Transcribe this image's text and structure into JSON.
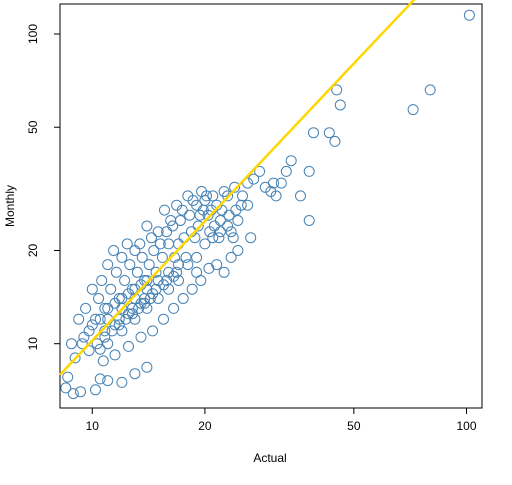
{
  "chart_data": {
    "type": "scatter",
    "title": "",
    "xlabel": "Actual",
    "ylabel": "Monthly",
    "xscale": "log",
    "yscale": "log",
    "xlim": [
      8.2,
      110
    ],
    "ylim": [
      6.2,
      125
    ],
    "xticks": [
      10,
      20,
      50,
      100
    ],
    "yticks": [
      10,
      20,
      50,
      100
    ],
    "grid": false,
    "legend": "none",
    "colors": {
      "points": "#4682b4",
      "fit_line": "#ffd700",
      "axis": "#000000"
    },
    "fit_line": {
      "slope": 1.28,
      "intercept_log10": -0.27
    },
    "points": [
      [
        101.8,
        115
      ],
      [
        80,
        66
      ],
      [
        72,
        57
      ],
      [
        46,
        59
      ],
      [
        45,
        66
      ],
      [
        44.5,
        45
      ],
      [
        43,
        48
      ],
      [
        39,
        48
      ],
      [
        38,
        36
      ],
      [
        38,
        25
      ],
      [
        36,
        30
      ],
      [
        34,
        39
      ],
      [
        33,
        36
      ],
      [
        32,
        33
      ],
      [
        31,
        30
      ],
      [
        30.5,
        33
      ],
      [
        30,
        31
      ],
      [
        29,
        32
      ],
      [
        28,
        36
      ],
      [
        27,
        34
      ],
      [
        26.5,
        22
      ],
      [
        26,
        33
      ],
      [
        26,
        28
      ],
      [
        25.2,
        30
      ],
      [
        25,
        28
      ],
      [
        24.5,
        25
      ],
      [
        24.2,
        27
      ],
      [
        24,
        32
      ],
      [
        23.8,
        22
      ],
      [
        23.5,
        23
      ],
      [
        23.2,
        26
      ],
      [
        23,
        30
      ],
      [
        22.5,
        31
      ],
      [
        22.2,
        27
      ],
      [
        22,
        25
      ],
      [
        21.8,
        22
      ],
      [
        21.5,
        28
      ],
      [
        21.2,
        24
      ],
      [
        21,
        30
      ],
      [
        20.8,
        27
      ],
      [
        20.6,
        23
      ],
      [
        20.4,
        26
      ],
      [
        20.2,
        30
      ],
      [
        20,
        29
      ],
      [
        19.8,
        27
      ],
      [
        19.6,
        31
      ],
      [
        19.4,
        26
      ],
      [
        19.2,
        24
      ],
      [
        19,
        28
      ],
      [
        18.8,
        22
      ],
      [
        18.6,
        29
      ],
      [
        18.4,
        23
      ],
      [
        18.2,
        26
      ],
      [
        18,
        30
      ],
      [
        17.8,
        19
      ],
      [
        17.6,
        22
      ],
      [
        17.4,
        27
      ],
      [
        17.2,
        25
      ],
      [
        17,
        21
      ],
      [
        16.8,
        28
      ],
      [
        16.6,
        19
      ],
      [
        16.4,
        24
      ],
      [
        16.2,
        25
      ],
      [
        16,
        21
      ],
      [
        15.8,
        23
      ],
      [
        15.6,
        27
      ],
      [
        15.4,
        19
      ],
      [
        15.2,
        21
      ],
      [
        15,
        23
      ],
      [
        14.8,
        17
      ],
      [
        14.6,
        20
      ],
      [
        14.4,
        22
      ],
      [
        14.2,
        18
      ],
      [
        14,
        24
      ],
      [
        13.8,
        16
      ],
      [
        13.6,
        19
      ],
      [
        13.4,
        21
      ],
      [
        13.2,
        17
      ],
      [
        13,
        20
      ],
      [
        12.8,
        15
      ],
      [
        12.6,
        18
      ],
      [
        12.4,
        21
      ],
      [
        12.2,
        16
      ],
      [
        12,
        19
      ],
      [
        11.8,
        14
      ],
      [
        11.6,
        17
      ],
      [
        11.4,
        20
      ],
      [
        11.2,
        15
      ],
      [
        11,
        18
      ],
      [
        10.8,
        13
      ],
      [
        10.6,
        16
      ],
      [
        10.4,
        14
      ],
      [
        10.2,
        12
      ],
      [
        10,
        15
      ],
      [
        9.8,
        11
      ],
      [
        9.6,
        13
      ],
      [
        9.4,
        10
      ],
      [
        9.2,
        12
      ],
      [
        9,
        9
      ],
      [
        8.8,
        10
      ],
      [
        8.6,
        7.8
      ],
      [
        8.5,
        7.2
      ],
      [
        8.9,
        6.9
      ],
      [
        9.3,
        7.0
      ],
      [
        10.2,
        7.1
      ],
      [
        11.0,
        7.6
      ],
      [
        12.0,
        7.5
      ],
      [
        13.0,
        8.0
      ],
      [
        14.0,
        8.4
      ],
      [
        10.5,
        7.7
      ],
      [
        19.5,
        16
      ],
      [
        20.5,
        17.5
      ],
      [
        21.5,
        18
      ],
      [
        22.5,
        17
      ],
      [
        23.5,
        19
      ],
      [
        24.5,
        20
      ],
      [
        19,
        17
      ],
      [
        18.5,
        15
      ],
      [
        17.5,
        14
      ],
      [
        16.5,
        13
      ],
      [
        15.5,
        12
      ],
      [
        14.5,
        11
      ],
      [
        13.5,
        10.5
      ],
      [
        12.5,
        9.8
      ],
      [
        11.5,
        9.2
      ],
      [
        10.7,
        8.8
      ],
      [
        16,
        15
      ],
      [
        15,
        14
      ],
      [
        14,
        13
      ],
      [
        13,
        12
      ],
      [
        12,
        11
      ],
      [
        11,
        10
      ],
      [
        10.5,
        9.6
      ],
      [
        17,
        16
      ],
      [
        18,
        18
      ],
      [
        19,
        19
      ],
      [
        20,
        21
      ],
      [
        21,
        22
      ],
      [
        22,
        23
      ],
      [
        23,
        24
      ],
      [
        11,
        12
      ],
      [
        12,
        13
      ],
      [
        13,
        14
      ],
      [
        14,
        15
      ],
      [
        15,
        16
      ],
      [
        16,
        17
      ],
      [
        17,
        18
      ],
      [
        11.5,
        11.5
      ],
      [
        12.5,
        12.5
      ],
      [
        13.5,
        13.5
      ],
      [
        14.5,
        14.5
      ],
      [
        15.5,
        15.5
      ],
      [
        16.5,
        16.5
      ],
      [
        10.8,
        11
      ],
      [
        11.8,
        12
      ],
      [
        12.8,
        13
      ],
      [
        13.8,
        14
      ],
      [
        14.8,
        15
      ],
      [
        15.8,
        16
      ],
      [
        16.8,
        17
      ],
      [
        9.5,
        10.5
      ],
      [
        10,
        11.5
      ],
      [
        10.5,
        12
      ],
      [
        11,
        13
      ],
      [
        11.5,
        13.5
      ],
      [
        12,
        14
      ],
      [
        12.5,
        14.5
      ],
      [
        13,
        15
      ],
      [
        13.5,
        15.5
      ],
      [
        14,
        16
      ],
      [
        9.8,
        9.5
      ],
      [
        10.3,
        10
      ],
      [
        10.8,
        10.5
      ],
      [
        11.3,
        11
      ],
      [
        11.8,
        11.5
      ],
      [
        12.3,
        12
      ],
      [
        12.8,
        12.5
      ],
      [
        13.3,
        13
      ],
      [
        13.8,
        13.5
      ],
      [
        14.3,
        14
      ]
    ]
  }
}
